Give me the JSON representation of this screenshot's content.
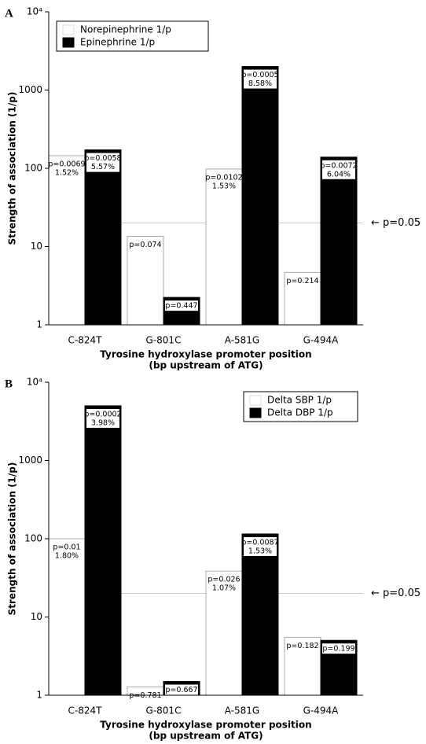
{
  "chart_data": [
    {
      "type": "bar",
      "panel": "A",
      "ylabel": "Strength of association (1/p)",
      "xlabel": [
        "Tyrosine hydroxylase promoter position",
        "(bp upstream of ATG)"
      ],
      "categories": [
        "C-824T",
        "G-801C",
        "A-581G",
        "G-494A"
      ],
      "series": [
        {
          "name": "Norepinephrine 1/p",
          "color": "#ffffff",
          "values": [
            145,
            13.5,
            98,
            4.67
          ],
          "p_labels": [
            "p=0.0069",
            "p=0.074",
            "p=0.0102",
            "p=0.214"
          ],
          "pct_labels": [
            "1.52%",
            null,
            "1.53%",
            null
          ]
        },
        {
          "name": "Epinephrine 1/p",
          "color": "#000000",
          "values": [
            172,
            2.24,
            2000,
            139
          ],
          "p_labels": [
            "p=0.0058",
            "p=0.447",
            "p=0.0005",
            "p=0.0072"
          ],
          "pct_labels": [
            "5.57%",
            null,
            "8.58%",
            "6.04%"
          ]
        }
      ],
      "log_scale": true,
      "ylim": [
        1,
        10000
      ],
      "yticks": [
        1,
        10,
        100,
        1000,
        {
          "value": 10000,
          "label": "10⁴"
        }
      ],
      "ref_line": {
        "value": 20,
        "label": "← p=0.05"
      },
      "legend": "upper left"
    },
    {
      "type": "bar",
      "panel": "B",
      "ylabel": "Strength of association (1/p)",
      "xlabel": [
        "Tyrosine hydroxylase promoter position",
        "(bp upstream of ATG)"
      ],
      "categories": [
        "C-824T",
        "G-801C",
        "A-581G",
        "G-494A"
      ],
      "series": [
        {
          "name": "Delta SBP 1/p",
          "color": "#ffffff",
          "values": [
            100,
            1.28,
            38.5,
            5.49
          ],
          "p_labels": [
            "p=0.01",
            "p=0.781",
            "p=0.026",
            "p=0.182"
          ],
          "pct_labels": [
            "1.80%",
            null,
            "1.07%",
            null
          ]
        },
        {
          "name": "Delta DBP 1/p",
          "color": "#000000",
          "values": [
            5000,
            1.5,
            115,
            5.03
          ],
          "p_labels": [
            "p=0.0002",
            "p=0.667",
            "p=0.0087",
            "p=0.199"
          ],
          "pct_labels": [
            "3.98%",
            null,
            "1.53%",
            null
          ]
        }
      ],
      "log_scale": true,
      "ylim": [
        1,
        10000
      ],
      "yticks": [
        1,
        10,
        100,
        1000,
        {
          "value": 10000,
          "label": "10⁴"
        }
      ],
      "ref_line": {
        "value": 20,
        "label": "← p=0.05"
      },
      "legend": "upper right"
    }
  ]
}
